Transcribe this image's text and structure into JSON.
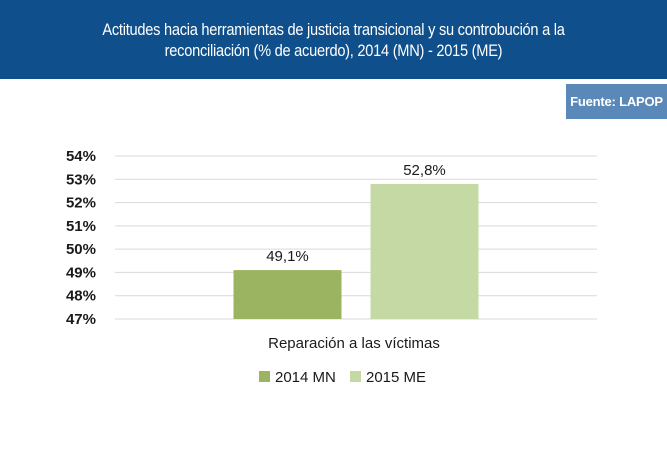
{
  "header": {
    "title_line1": "Actitudes hacia herramientas de justicia transicional y su controbución a la",
    "title_line2": "reconciliación (% de acuerdo), 2014 (MN) - 2015 (ME)"
  },
  "source": "Fuente: LAPOP",
  "colors": {
    "header_bg": "#0f4f8c",
    "badge_bg": "#5a88b8",
    "series_2014": "#9bb461",
    "series_2015": "#c5d9a5"
  },
  "chart_data": {
    "type": "bar",
    "title": "Actitudes hacia herramientas de justicia transicional y su controbución a la reconciliación (% de acuerdo), 2014 (MN) - 2015 (ME)",
    "categories": [
      "Reparación a las víctimas"
    ],
    "series": [
      {
        "name": "2014 MN",
        "values": [
          49.1
        ],
        "label": "49,1%"
      },
      {
        "name": "2015 ME",
        "values": [
          52.8
        ],
        "label": "52,8%"
      }
    ],
    "yticks": [
      "47%",
      "48%",
      "49%",
      "50%",
      "51%",
      "52%",
      "53%",
      "54%"
    ],
    "ylim": [
      47,
      54
    ],
    "grid": true,
    "legend": "bottom"
  }
}
